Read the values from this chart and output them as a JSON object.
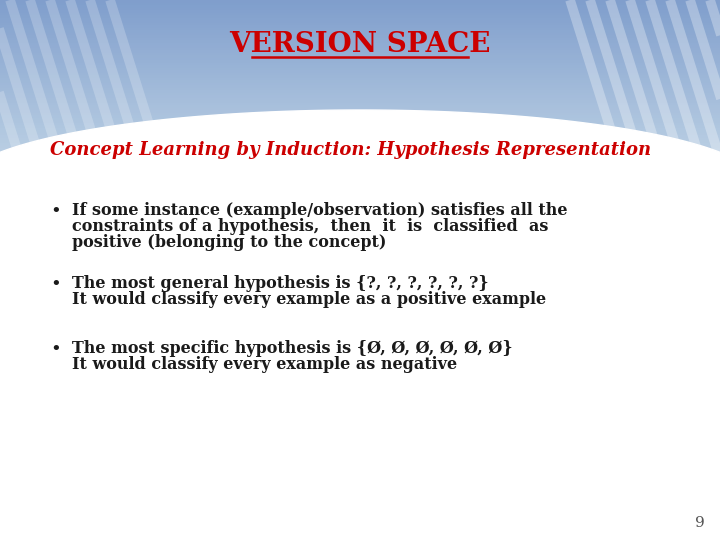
{
  "title": "VERSION SPACE",
  "title_color": "#CC0000",
  "subtitle": "Concept Learning by Induction: Hypothesis Representation",
  "subtitle_color": "#CC0000",
  "bullet1_line1": "If some instance (example/observation) satisfies all the",
  "bullet1_line2": "constraints of a hypothesis,  then  it  is  classified  as",
  "bullet1_line3": "positive (belonging to the concept)",
  "bullet2_line1": "The most general hypothesis is {?, ?, ?, ?, ?, ?}",
  "bullet2_line2": "It would classify every example as a positive example",
  "bullet3_line1": "The most specific hypothesis is {Ø, Ø, Ø, Ø, Ø, Ø}",
  "bullet3_line2": "It would classify every example as negative",
  "page_number": "9",
  "text_color": "#1a1a1a",
  "figwidth": 7.2,
  "figheight": 5.4,
  "dpi": 100
}
